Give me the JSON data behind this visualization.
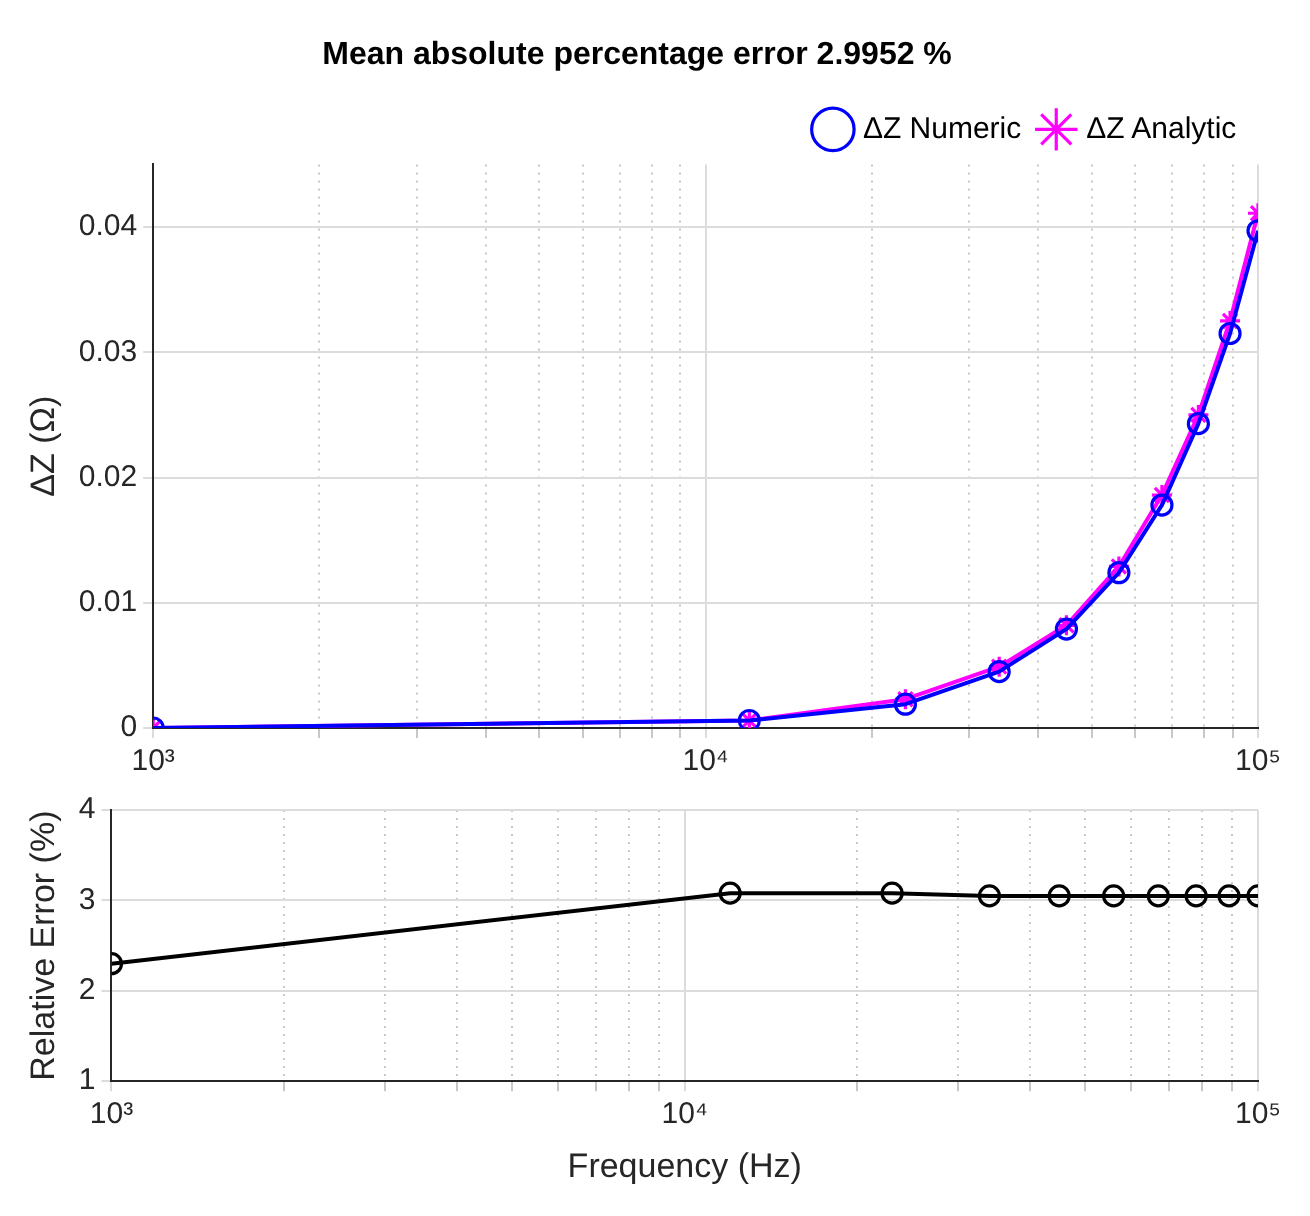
{
  "chart_data": [
    {
      "type": "line",
      "title": "Mean absolute percentage error 2.9952 %",
      "ylabel": "ΔZ (Ω)",
      "x": [
        1000,
        12000,
        23000,
        34000,
        45000,
        56000,
        67000,
        78000,
        89000,
        100000
      ],
      "series": [
        {
          "name": "ΔZ Numeric",
          "color": "#0000ff",
          "marker": "circle",
          "values": [
            0,
            0.0006,
            0.0019,
            0.0045,
            0.0079,
            0.0124,
            0.0178,
            0.0243,
            0.0315,
            0.0397
          ]
        },
        {
          "name": "ΔZ Analytic",
          "color": "#ff00ff",
          "marker": "cross",
          "values": [
            0,
            0.0006,
            0.0023,
            0.0049,
            0.0082,
            0.0129,
            0.0186,
            0.025,
            0.0325,
            0.0411
          ]
        }
      ],
      "log": "x",
      "xlim": [
        1000,
        100000
      ],
      "xticks": [
        {
          "value": 1000,
          "label": "10³"
        },
        {
          "value": 2000,
          "label": null
        },
        {
          "value": 3000,
          "label": null
        },
        {
          "value": 4000,
          "label": null
        },
        {
          "value": 5000,
          "label": null
        },
        {
          "value": 6000,
          "label": null
        },
        {
          "value": 7000,
          "label": null
        },
        {
          "value": 8000,
          "label": null
        },
        {
          "value": 9000,
          "label": null
        },
        {
          "value": 10000,
          "label": "10⁴"
        },
        {
          "value": 20000,
          "label": null
        },
        {
          "value": 30000,
          "label": null
        },
        {
          "value": 40000,
          "label": null
        },
        {
          "value": 50000,
          "label": null
        },
        {
          "value": 60000,
          "label": null
        },
        {
          "value": 70000,
          "label": null
        },
        {
          "value": 80000,
          "label": null
        },
        {
          "value": 90000,
          "label": null
        },
        {
          "value": 100000,
          "label": "10⁵"
        }
      ],
      "ylim": [
        0,
        0.045
      ],
      "yticks": [
        0,
        0.01,
        0.02,
        0.03,
        0.04
      ],
      "grid": true,
      "legend": "top right",
      "line_style": "solid"
    },
    {
      "type": "line",
      "xlabel": "Frequency (Hz)",
      "ylabel": "Relative Error (%)",
      "x": [
        1000,
        12000,
        23000,
        34000,
        45000,
        56000,
        67000,
        78000,
        89000,
        100000
      ],
      "series": [
        {
          "color": "#000000",
          "marker": "circle",
          "values": [
            2.3,
            3.08,
            3.08,
            3.05,
            3.05,
            3.05,
            3.05,
            3.05,
            3.05,
            3.05
          ]
        }
      ],
      "log": "x",
      "xlim": [
        1000,
        100000
      ],
      "xticks": [
        {
          "value": 1000,
          "label": "10³"
        },
        {
          "value": 2000,
          "label": null
        },
        {
          "value": 3000,
          "label": null
        },
        {
          "value": 4000,
          "label": null
        },
        {
          "value": 5000,
          "label": null
        },
        {
          "value": 6000,
          "label": null
        },
        {
          "value": 7000,
          "label": null
        },
        {
          "value": 8000,
          "label": null
        },
        {
          "value": 9000,
          "label": null
        },
        {
          "value": 10000,
          "label": "10⁴"
        },
        {
          "value": 20000,
          "label": null
        },
        {
          "value": 30000,
          "label": null
        },
        {
          "value": 40000,
          "label": null
        },
        {
          "value": 50000,
          "label": null
        },
        {
          "value": 60000,
          "label": null
        },
        {
          "value": 70000,
          "label": null
        },
        {
          "value": 80000,
          "label": null
        },
        {
          "value": 90000,
          "label": null
        },
        {
          "value": 100000,
          "label": "10⁵"
        }
      ],
      "ylim": [
        1,
        4
      ],
      "yticks": [
        1,
        2,
        3,
        4
      ],
      "grid": true,
      "legend": false,
      "line_style": "solid"
    }
  ]
}
